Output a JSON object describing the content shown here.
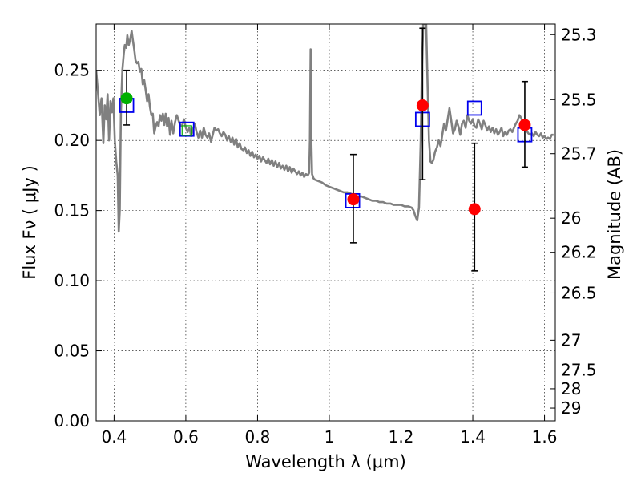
{
  "chart_data": {
    "type": "scatter",
    "title": "",
    "xlabel": "Wavelength  λ (μm)",
    "ylabel": "Flux  Fν  ( μJy )",
    "ylabel_right": "Magnitude (AB)",
    "xlim": [
      0.35,
      1.63
    ],
    "ylim": [
      0.0,
      0.283
    ],
    "grid": true,
    "x_ticks": [
      {
        "value": 0.4,
        "label": "0.4"
      },
      {
        "value": 0.6,
        "label": "0.6"
      },
      {
        "value": 0.8,
        "label": "0.8"
      },
      {
        "value": 1.0,
        "label": "1"
      },
      {
        "value": 1.2,
        "label": "1.2"
      },
      {
        "value": 1.4,
        "label": "1.4"
      },
      {
        "value": 1.6,
        "label": "1.6"
      }
    ],
    "y_ticks": [
      {
        "value": 0.0,
        "label": "0.00"
      },
      {
        "value": 0.05,
        "label": "0.05"
      },
      {
        "value": 0.1,
        "label": "0.10"
      },
      {
        "value": 0.15,
        "label": "0.15"
      },
      {
        "value": 0.2,
        "label": "0.20"
      },
      {
        "value": 0.25,
        "label": "0.25"
      }
    ],
    "right_ticks": [
      {
        "value": 25.3,
        "label": "25.3"
      },
      {
        "value": 25.5,
        "label": "25.5"
      },
      {
        "value": 25.7,
        "label": "25.7"
      },
      {
        "value": 26.0,
        "label": "26"
      },
      {
        "value": 26.2,
        "label": "26.2"
      },
      {
        "value": 26.5,
        "label": "26.5"
      },
      {
        "value": 27.0,
        "label": "27"
      },
      {
        "value": 27.5,
        "label": "27.5"
      },
      {
        "value": 28.0,
        "label": "28"
      },
      {
        "value": 29.0,
        "label": "29"
      }
    ],
    "colors": {
      "sed": "#808080",
      "model_box": "#0000ee",
      "model_box_green": "#00aa00",
      "detection": "#ff0000",
      "detection_green": "#00b000",
      "errorbar": "#000000"
    },
    "sed_curve": [
      [
        0.35,
        0.25
      ],
      [
        0.355,
        0.235
      ],
      [
        0.36,
        0.218
      ],
      [
        0.365,
        0.23
      ],
      [
        0.37,
        0.198
      ],
      [
        0.374,
        0.225
      ],
      [
        0.378,
        0.215
      ],
      [
        0.382,
        0.233
      ],
      [
        0.386,
        0.2
      ],
      [
        0.39,
        0.228
      ],
      [
        0.394,
        0.22
      ],
      [
        0.398,
        0.23
      ],
      [
        0.402,
        0.2
      ],
      [
        0.406,
        0.185
      ],
      [
        0.41,
        0.175
      ],
      [
        0.413,
        0.135
      ],
      [
        0.416,
        0.15
      ],
      [
        0.419,
        0.22
      ],
      [
        0.423,
        0.25
      ],
      [
        0.427,
        0.262
      ],
      [
        0.43,
        0.268
      ],
      [
        0.434,
        0.266
      ],
      [
        0.437,
        0.275
      ],
      [
        0.441,
        0.268
      ],
      [
        0.445,
        0.272
      ],
      [
        0.449,
        0.278
      ],
      [
        0.452,
        0.272
      ],
      [
        0.456,
        0.265
      ],
      [
        0.46,
        0.257
      ],
      [
        0.464,
        0.255
      ],
      [
        0.468,
        0.256
      ],
      [
        0.472,
        0.249
      ],
      [
        0.476,
        0.251
      ],
      [
        0.48,
        0.24
      ],
      [
        0.484,
        0.243
      ],
      [
        0.488,
        0.236
      ],
      [
        0.492,
        0.228
      ],
      [
        0.496,
        0.233
      ],
      [
        0.5,
        0.224
      ],
      [
        0.504,
        0.218
      ],
      [
        0.508,
        0.219
      ],
      [
        0.512,
        0.205
      ],
      [
        0.516,
        0.21
      ],
      [
        0.52,
        0.213
      ],
      [
        0.524,
        0.21
      ],
      [
        0.528,
        0.218
      ],
      [
        0.532,
        0.214
      ],
      [
        0.536,
        0.219
      ],
      [
        0.54,
        0.211
      ],
      [
        0.544,
        0.219
      ],
      [
        0.548,
        0.21
      ],
      [
        0.552,
        0.216
      ],
      [
        0.556,
        0.204
      ],
      [
        0.56,
        0.214
      ],
      [
        0.565,
        0.205
      ],
      [
        0.57,
        0.213
      ],
      [
        0.575,
        0.218
      ],
      [
        0.58,
        0.214
      ],
      [
        0.585,
        0.21
      ],
      [
        0.59,
        0.211
      ],
      [
        0.595,
        0.215
      ],
      [
        0.6,
        0.209
      ],
      [
        0.605,
        0.206
      ],
      [
        0.61,
        0.209
      ],
      [
        0.615,
        0.203
      ],
      [
        0.62,
        0.208
      ],
      [
        0.625,
        0.212
      ],
      [
        0.63,
        0.206
      ],
      [
        0.635,
        0.202
      ],
      [
        0.64,
        0.207
      ],
      [
        0.645,
        0.202
      ],
      [
        0.65,
        0.209
      ],
      [
        0.655,
        0.204
      ],
      [
        0.66,
        0.202
      ],
      [
        0.665,
        0.205
      ],
      [
        0.67,
        0.199
      ],
      [
        0.675,
        0.204
      ],
      [
        0.68,
        0.209
      ],
      [
        0.685,
        0.207
      ],
      [
        0.69,
        0.208
      ],
      [
        0.695,
        0.205
      ],
      [
        0.7,
        0.203
      ],
      [
        0.705,
        0.206
      ],
      [
        0.71,
        0.204
      ],
      [
        0.715,
        0.2
      ],
      [
        0.72,
        0.203
      ],
      [
        0.725,
        0.199
      ],
      [
        0.73,
        0.202
      ],
      [
        0.735,
        0.197
      ],
      [
        0.74,
        0.201
      ],
      [
        0.745,
        0.195
      ],
      [
        0.75,
        0.198
      ],
      [
        0.755,
        0.194
      ],
      [
        0.76,
        0.193
      ],
      [
        0.765,
        0.195
      ],
      [
        0.77,
        0.191
      ],
      [
        0.775,
        0.193
      ],
      [
        0.78,
        0.189
      ],
      [
        0.785,
        0.192
      ],
      [
        0.79,
        0.188
      ],
      [
        0.795,
        0.19
      ],
      [
        0.8,
        0.187
      ],
      [
        0.805,
        0.189
      ],
      [
        0.81,
        0.185
      ],
      [
        0.815,
        0.188
      ],
      [
        0.82,
        0.186
      ],
      [
        0.825,
        0.184
      ],
      [
        0.83,
        0.187
      ],
      [
        0.835,
        0.183
      ],
      [
        0.84,
        0.186
      ],
      [
        0.845,
        0.182
      ],
      [
        0.85,
        0.185
      ],
      [
        0.855,
        0.181
      ],
      [
        0.86,
        0.184
      ],
      [
        0.865,
        0.18
      ],
      [
        0.87,
        0.182
      ],
      [
        0.875,
        0.179
      ],
      [
        0.88,
        0.182
      ],
      [
        0.885,
        0.178
      ],
      [
        0.89,
        0.181
      ],
      [
        0.895,
        0.177
      ],
      [
        0.9,
        0.18
      ],
      [
        0.905,
        0.178
      ],
      [
        0.91,
        0.176
      ],
      [
        0.915,
        0.178
      ],
      [
        0.92,
        0.175
      ],
      [
        0.925,
        0.177
      ],
      [
        0.93,
        0.174
      ],
      [
        0.935,
        0.176
      ],
      [
        0.94,
        0.175
      ],
      [
        0.944,
        0.177
      ],
      [
        0.946,
        0.2
      ],
      [
        0.948,
        0.265
      ],
      [
        0.95,
        0.2
      ],
      [
        0.952,
        0.176
      ],
      [
        0.956,
        0.173
      ],
      [
        0.96,
        0.172
      ],
      [
        0.97,
        0.171
      ],
      [
        0.98,
        0.17
      ],
      [
        0.99,
        0.168
      ],
      [
        1.0,
        0.167
      ],
      [
        1.01,
        0.166
      ],
      [
        1.02,
        0.165
      ],
      [
        1.03,
        0.164
      ],
      [
        1.04,
        0.163
      ],
      [
        1.05,
        0.163
      ],
      [
        1.06,
        0.162
      ],
      [
        1.07,
        0.161
      ],
      [
        1.08,
        0.16
      ],
      [
        1.09,
        0.16
      ],
      [
        1.1,
        0.159
      ],
      [
        1.11,
        0.158
      ],
      [
        1.12,
        0.157
      ],
      [
        1.13,
        0.157
      ],
      [
        1.14,
        0.156
      ],
      [
        1.15,
        0.156
      ],
      [
        1.16,
        0.155
      ],
      [
        1.17,
        0.155
      ],
      [
        1.18,
        0.154
      ],
      [
        1.19,
        0.154
      ],
      [
        1.2,
        0.154
      ],
      [
        1.21,
        0.153
      ],
      [
        1.22,
        0.153
      ],
      [
        1.23,
        0.152
      ],
      [
        1.235,
        0.15
      ],
      [
        1.24,
        0.146
      ],
      [
        1.245,
        0.143
      ],
      [
        1.25,
        0.152
      ],
      [
        1.255,
        0.2
      ],
      [
        1.258,
        0.25
      ],
      [
        1.262,
        0.285
      ],
      [
        1.267,
        0.283
      ],
      [
        1.27,
        0.285
      ],
      [
        1.274,
        0.24
      ],
      [
        1.278,
        0.2
      ],
      [
        1.282,
        0.185
      ],
      [
        1.286,
        0.184
      ],
      [
        1.29,
        0.186
      ],
      [
        1.295,
        0.192
      ],
      [
        1.3,
        0.195
      ],
      [
        1.305,
        0.2
      ],
      [
        1.31,
        0.196
      ],
      [
        1.315,
        0.204
      ],
      [
        1.32,
        0.212
      ],
      [
        1.325,
        0.207
      ],
      [
        1.33,
        0.215
      ],
      [
        1.335,
        0.223
      ],
      [
        1.34,
        0.214
      ],
      [
        1.345,
        0.205
      ],
      [
        1.35,
        0.208
      ],
      [
        1.355,
        0.214
      ],
      [
        1.36,
        0.21
      ],
      [
        1.365,
        0.204
      ],
      [
        1.37,
        0.212
      ],
      [
        1.375,
        0.214
      ],
      [
        1.38,
        0.209
      ],
      [
        1.385,
        0.218
      ],
      [
        1.39,
        0.214
      ],
      [
        1.395,
        0.212
      ],
      [
        1.4,
        0.215
      ],
      [
        1.405,
        0.21
      ],
      [
        1.41,
        0.209
      ],
      [
        1.415,
        0.215
      ],
      [
        1.42,
        0.212
      ],
      [
        1.425,
        0.208
      ],
      [
        1.43,
        0.214
      ],
      [
        1.435,
        0.211
      ],
      [
        1.44,
        0.207
      ],
      [
        1.445,
        0.21
      ],
      [
        1.45,
        0.206
      ],
      [
        1.455,
        0.209
      ],
      [
        1.46,
        0.205
      ],
      [
        1.465,
        0.208
      ],
      [
        1.47,
        0.204
      ],
      [
        1.475,
        0.206
      ],
      [
        1.48,
        0.209
      ],
      [
        1.485,
        0.203
      ],
      [
        1.49,
        0.206
      ],
      [
        1.495,
        0.204
      ],
      [
        1.5,
        0.207
      ],
      [
        1.505,
        0.208
      ],
      [
        1.51,
        0.206
      ],
      [
        1.515,
        0.209
      ],
      [
        1.52,
        0.212
      ],
      [
        1.525,
        0.214
      ],
      [
        1.53,
        0.218
      ],
      [
        1.535,
        0.216
      ],
      [
        1.54,
        0.212
      ],
      [
        1.545,
        0.21
      ],
      [
        1.55,
        0.207
      ],
      [
        1.555,
        0.205
      ],
      [
        1.56,
        0.204
      ],
      [
        1.565,
        0.205
      ],
      [
        1.57,
        0.203
      ],
      [
        1.575,
        0.206
      ],
      [
        1.58,
        0.204
      ],
      [
        1.585,
        0.203
      ],
      [
        1.59,
        0.205
      ],
      [
        1.595,
        0.202
      ],
      [
        1.6,
        0.203
      ],
      [
        1.605,
        0.201
      ],
      [
        1.61,
        0.202
      ],
      [
        1.615,
        0.201
      ],
      [
        1.62,
        0.204
      ],
      [
        1.625,
        0.204
      ]
    ],
    "model_boxes": [
      {
        "x": 0.435,
        "y": 0.225,
        "color": "blue"
      },
      {
        "x": 0.603,
        "y": 0.208,
        "color": "blue"
      },
      {
        "x": 0.603,
        "y": 0.207,
        "color": "green",
        "small": true
      },
      {
        "x": 1.065,
        "y": 0.157,
        "color": "blue"
      },
      {
        "x": 1.26,
        "y": 0.215,
        "color": "blue"
      },
      {
        "x": 1.405,
        "y": 0.223,
        "color": "blue"
      },
      {
        "x": 1.545,
        "y": 0.204,
        "color": "blue"
      }
    ],
    "detections": [
      {
        "x": 0.435,
        "y": 0.23,
        "yerr_low": 0.211,
        "yerr_high": 0.25,
        "color": "green"
      },
      {
        "x": 1.067,
        "y": 0.158,
        "yerr_low": 0.127,
        "yerr_high": 0.19,
        "color": "red"
      },
      {
        "x": 1.26,
        "y": 0.225,
        "yerr_low": 0.172,
        "yerr_high": 0.28,
        "color": "red"
      },
      {
        "x": 1.405,
        "y": 0.151,
        "yerr_low": 0.107,
        "yerr_high": 0.198,
        "color": "red"
      },
      {
        "x": 1.545,
        "y": 0.211,
        "yerr_low": 0.181,
        "yerr_high": 0.242,
        "color": "red"
      }
    ]
  }
}
